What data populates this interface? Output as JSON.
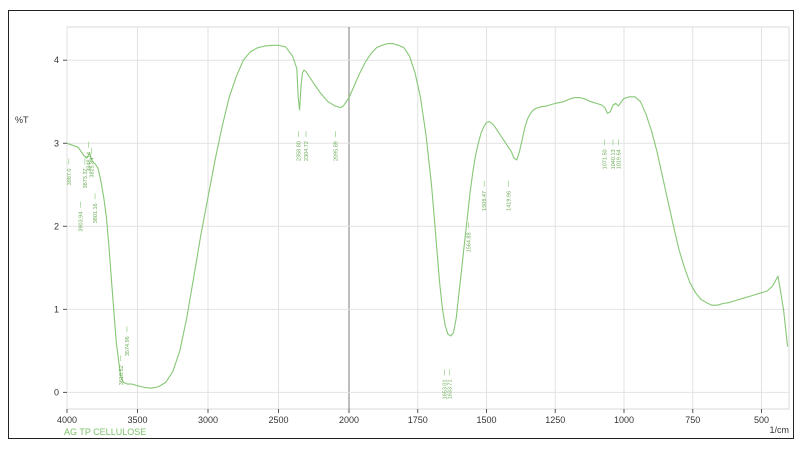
{
  "chart_data": {
    "type": "line",
    "title": "",
    "sample_name": "AG TP CELLULOSE",
    "ylabel": "%T",
    "xunit": "1/cm",
    "xlim": [
      4000,
      400
    ],
    "ylim": [
      -0.2,
      4.4
    ],
    "x_ticks": [
      4000,
      3500,
      3000,
      2500,
      2000,
      1750,
      1500,
      1250,
      1000,
      750,
      500
    ],
    "x_tick_labels": [
      "4000",
      "3500",
      "3000",
      "2500",
      "2000",
      "1750",
      "1500",
      "1250",
      "1000",
      "750",
      "500"
    ],
    "y_ticks": [
      0,
      1,
      2,
      3,
      4
    ],
    "y_tick_labels": [
      "0",
      "1",
      "2",
      "3",
      "4"
    ],
    "grid": true,
    "line_color": "#86c776",
    "series": [
      {
        "x": [
          4000,
          3950,
          3920,
          3900,
          3880,
          3860,
          3840,
          3820,
          3800,
          3780,
          3760,
          3740,
          3720,
          3700,
          3680,
          3650,
          3620,
          3600,
          3570,
          3540,
          3500,
          3450,
          3400,
          3350,
          3300,
          3250,
          3200,
          3150,
          3100,
          3050,
          3000,
          2950,
          2900,
          2850,
          2800,
          2750,
          2700,
          2650,
          2600,
          2550,
          2500,
          2450,
          2400,
          2370,
          2360,
          2350,
          2340,
          2330,
          2320,
          2310,
          2300,
          2250,
          2200,
          2150,
          2100,
          2060,
          2040,
          2000,
          1980,
          1960,
          1940,
          1920,
          1900,
          1880,
          1860,
          1840,
          1820,
          1800,
          1780,
          1760,
          1740,
          1720,
          1700,
          1690,
          1680,
          1670,
          1660,
          1650,
          1640,
          1630,
          1620,
          1610,
          1600,
          1590,
          1580,
          1570,
          1560,
          1550,
          1540,
          1530,
          1520,
          1510,
          1500,
          1490,
          1480,
          1470,
          1460,
          1450,
          1440,
          1430,
          1420,
          1410,
          1400,
          1390,
          1380,
          1370,
          1360,
          1350,
          1340,
          1330,
          1320,
          1300,
          1280,
          1250,
          1220,
          1200,
          1180,
          1160,
          1140,
          1120,
          1100,
          1080,
          1070,
          1060,
          1050,
          1040,
          1030,
          1020,
          1010,
          1000,
          980,
          960,
          940,
          920,
          900,
          880,
          860,
          840,
          820,
          800,
          780,
          760,
          740,
          720,
          700,
          680,
          660,
          640,
          620,
          600,
          580,
          560,
          540,
          520,
          500,
          480,
          460,
          440,
          420,
          405
        ],
        "y": [
          3.0,
          2.97,
          2.95,
          2.9,
          2.85,
          2.82,
          2.88,
          2.78,
          2.75,
          2.7,
          2.55,
          2.35,
          2.1,
          1.7,
          1.25,
          0.6,
          0.2,
          0.12,
          0.1,
          0.1,
          0.08,
          0.06,
          0.05,
          0.07,
          0.12,
          0.25,
          0.5,
          0.9,
          1.4,
          1.9,
          2.35,
          2.8,
          3.2,
          3.55,
          3.8,
          4.0,
          4.1,
          4.15,
          4.17,
          4.18,
          4.18,
          4.16,
          4.05,
          3.9,
          3.55,
          3.4,
          3.7,
          3.85,
          3.88,
          3.87,
          3.85,
          3.72,
          3.6,
          3.5,
          3.45,
          3.43,
          3.45,
          3.55,
          3.7,
          3.85,
          3.98,
          4.08,
          4.15,
          4.18,
          4.2,
          4.2,
          4.18,
          4.15,
          4.05,
          3.85,
          3.55,
          3.1,
          2.5,
          2.1,
          1.7,
          1.3,
          1.0,
          0.8,
          0.7,
          0.68,
          0.72,
          0.9,
          1.2,
          1.5,
          1.8,
          2.1,
          2.4,
          2.65,
          2.85,
          3.0,
          3.12,
          3.2,
          3.25,
          3.26,
          3.24,
          3.2,
          3.15,
          3.1,
          3.05,
          3.0,
          2.95,
          2.9,
          2.82,
          2.8,
          2.9,
          3.05,
          3.2,
          3.3,
          3.36,
          3.4,
          3.42,
          3.44,
          3.45,
          3.48,
          3.5,
          3.53,
          3.55,
          3.55,
          3.53,
          3.5,
          3.48,
          3.46,
          3.43,
          3.36,
          3.38,
          3.46,
          3.48,
          3.45,
          3.5,
          3.54,
          3.56,
          3.56,
          3.5,
          3.35,
          3.15,
          2.9,
          2.6,
          2.3,
          2.0,
          1.72,
          1.5,
          1.32,
          1.2,
          1.12,
          1.08,
          1.05,
          1.05,
          1.07,
          1.08,
          1.1,
          1.12,
          1.14,
          1.16,
          1.18,
          1.2,
          1.22,
          1.28,
          1.4,
          1.0,
          0.55
        ]
      }
    ],
    "peak_labels": [
      {
        "wavenumber": 3987.0,
        "y": 2.72,
        "text": "3987.0"
      },
      {
        "wavenumber": 3903.94,
        "y": 2.2,
        "text": "3903.94"
      },
      {
        "wavenumber": 3873.37,
        "y": 2.72,
        "text": "3873.37"
      },
      {
        "wavenumber": 3848.14,
        "y": 2.92,
        "text": "3848.14"
      },
      {
        "wavenumber": 3825.84,
        "y": 2.85,
        "text": "3825.84"
      },
      {
        "wavenumber": 3801.16,
        "y": 2.3,
        "text": "3801.16"
      },
      {
        "wavenumber": 3618.52,
        "y": 0.35,
        "text": "3618.52"
      },
      {
        "wavenumber": 3574.96,
        "y": 0.7,
        "text": "3574.96"
      },
      {
        "wavenumber": 2358.8,
        "y": 3.05,
        "text": "2358.80"
      },
      {
        "wavenumber": 2304.72,
        "y": 3.05,
        "text": "2304.72"
      },
      {
        "wavenumber": 2095.89,
        "y": 3.05,
        "text": "2095.89"
      },
      {
        "wavenumber": 1653.01,
        "y": 0.18,
        "text": "1653.01"
      },
      {
        "wavenumber": 1633.71,
        "y": 0.18,
        "text": "1633.71"
      },
      {
        "wavenumber": 1564.88,
        "y": 1.95,
        "text": "1564.88"
      },
      {
        "wavenumber": 1508.47,
        "y": 2.45,
        "text": "1508.47"
      },
      {
        "wavenumber": 1419.96,
        "y": 2.45,
        "text": "1419.96"
      },
      {
        "wavenumber": 1071.5,
        "y": 2.95,
        "text": "1071.50"
      },
      {
        "wavenumber": 1040.13,
        "y": 2.95,
        "text": "1040.13"
      },
      {
        "wavenumber": 1019.64,
        "y": 2.95,
        "text": "1019.64"
      }
    ]
  }
}
